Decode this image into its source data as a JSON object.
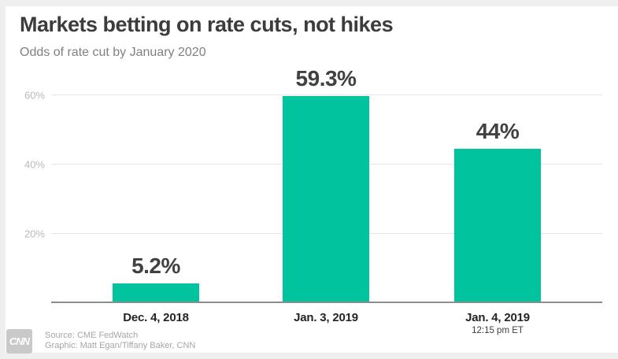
{
  "header": {
    "title": "Markets betting on rate cuts, not hikes",
    "subtitle": "Odds of rate cut by January 2020"
  },
  "chart_data": {
    "type": "bar",
    "categories": [
      "Dec. 4, 2018",
      "Jan. 3, 2019",
      "Jan. 4, 2019"
    ],
    "category_sublabels": [
      "",
      "",
      "12:15 pm ET"
    ],
    "values": [
      5.2,
      59.3,
      44
    ],
    "value_labels": [
      "5.2%",
      "59.3%",
      "44%"
    ],
    "yticks": [
      20,
      40,
      60
    ],
    "ytick_labels": [
      "20%",
      "40%",
      "60%"
    ],
    "ylim": [
      0,
      66
    ],
    "xlabel": "",
    "ylabel": "",
    "grid": true,
    "legend": "none",
    "bar_color": "#00c49e",
    "gridline_color": "#e7e7e7",
    "axis_line_color": "#8c8c8c"
  },
  "footer": {
    "logo_text": "CNN",
    "source_line": "Source: CME FedWatch",
    "credit_line": "Graphic: Matt Egan/Tiffany Baker, CNN"
  }
}
